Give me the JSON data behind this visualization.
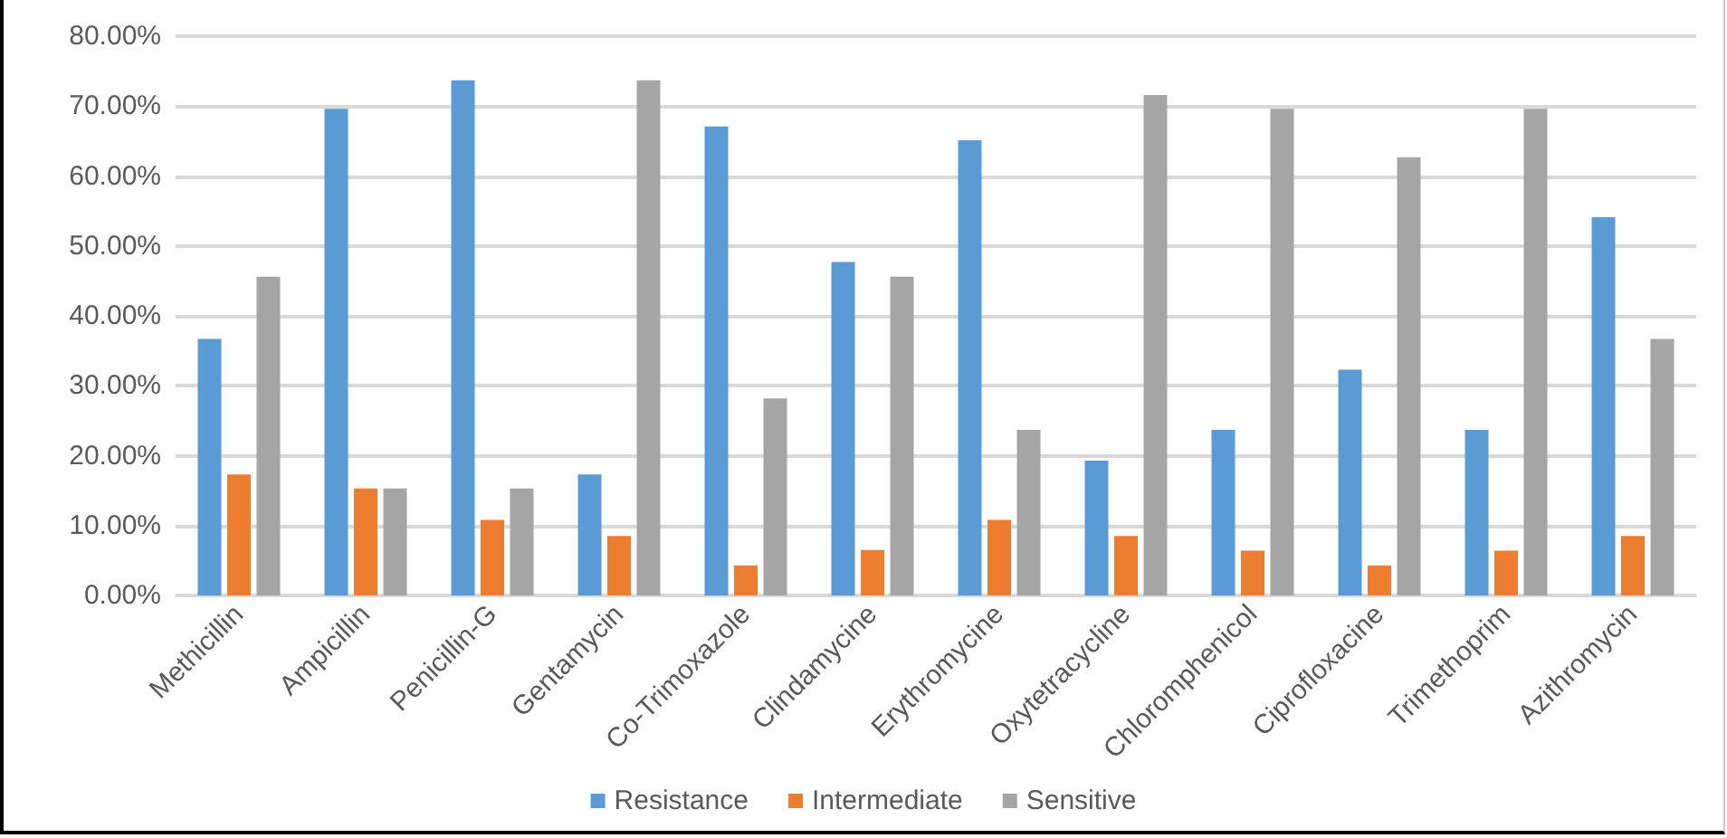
{
  "chart_data": {
    "type": "bar",
    "categories": [
      "Methicillin",
      "Ampicillin",
      "Penicillin-G",
      "Gentamycin",
      "Co-Trimoxazole",
      "Clindamycine",
      "Erythromycine",
      "Oxytetracycline",
      "Chloromphenicol",
      "Ciprofloxacine",
      "Trimethoprim",
      "Azithromycin"
    ],
    "series": [
      {
        "name": "Resistance",
        "color": "#5b9bd5",
        "values": [
          36.7,
          69.6,
          73.7,
          17.3,
          67.1,
          47.7,
          65.1,
          19.3,
          23.7,
          32.3,
          23.7,
          54.1
        ]
      },
      {
        "name": "Intermediate",
        "color": "#ed7d31",
        "values": [
          17.3,
          15.3,
          10.8,
          8.5,
          4.3,
          6.5,
          10.8,
          8.5,
          6.4,
          4.3,
          6.4,
          8.5
        ]
      },
      {
        "name": "Sensitive",
        "color": "#a5a5a5",
        "values": [
          45.6,
          15.3,
          15.3,
          73.7,
          28.2,
          45.6,
          23.7,
          71.6,
          69.6,
          62.7,
          69.6,
          36.7
        ]
      }
    ],
    "ylim": [
      0,
      80
    ],
    "yticks": [
      {
        "value": 0,
        "label": "0.00%"
      },
      {
        "value": 10,
        "label": "10.00%"
      },
      {
        "value": 20,
        "label": "20.00%"
      },
      {
        "value": 30,
        "label": "30.00%"
      },
      {
        "value": 40,
        "label": "40.00%"
      },
      {
        "value": 50,
        "label": "50.00%"
      },
      {
        "value": 60,
        "label": "60.00%"
      },
      {
        "value": 70,
        "label": "70.00%"
      },
      {
        "value": 80,
        "label": "80.00%"
      }
    ],
    "grid": "y",
    "legend": "bottom"
  }
}
